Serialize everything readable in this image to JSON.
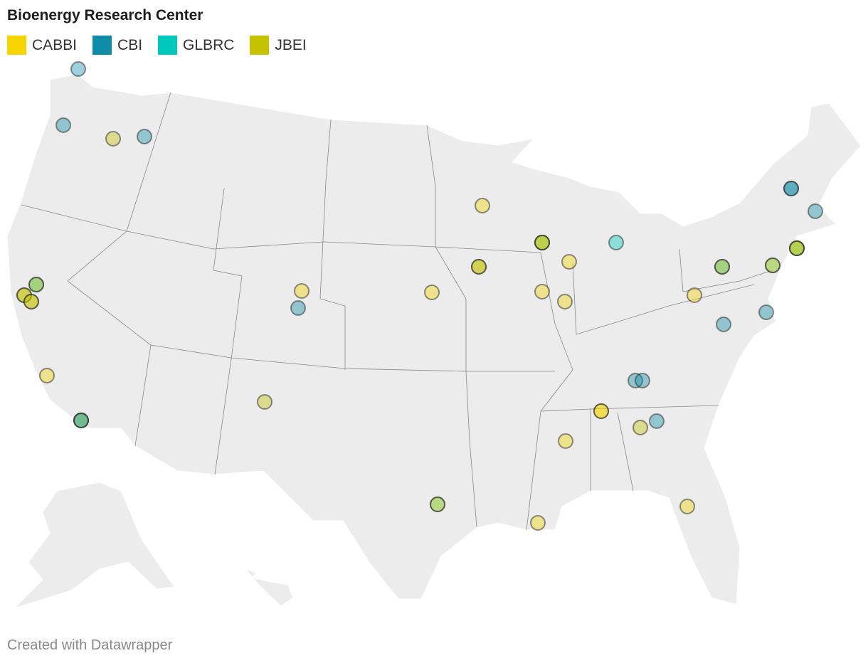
{
  "title": "Bioenergy Research Center",
  "legend": [
    {
      "name": "CABBI",
      "color": "#f5d400"
    },
    {
      "name": "CBI",
      "color": "#0e8ca8"
    },
    {
      "name": "GLBRC",
      "color": "#00c9bb"
    },
    {
      "name": "JBEI",
      "color": "#c5c300"
    }
  ],
  "footer": "Created with Datawrapper"
}
